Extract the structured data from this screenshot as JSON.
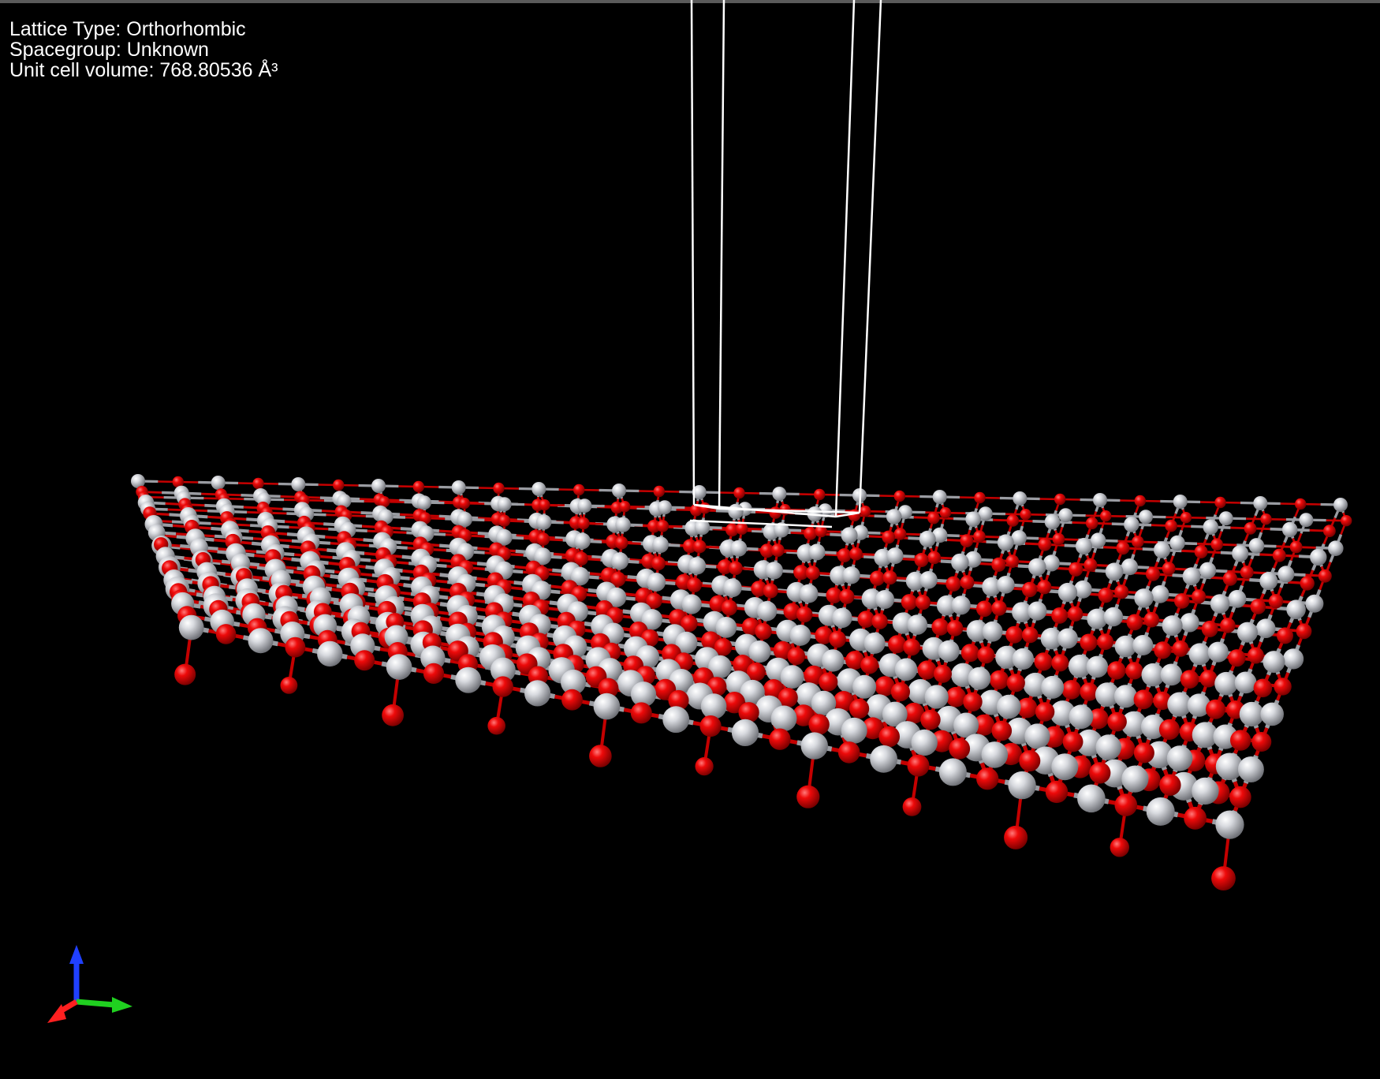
{
  "info": {
    "lattice_type": "Lattice Type: Orthorhombic",
    "spacegroup": "Spacegroup: Unknown",
    "unit_cell_volume": "Unit cell volume: 768.80536 Å³"
  },
  "colors": {
    "background": "#000000",
    "atom_light": "#c8cacf",
    "atom_red": "#e00000",
    "cell_edges": "#ffffff",
    "axis_x": "#ff2020",
    "axis_y": "#20d020",
    "axis_z": "#2040ff"
  },
  "icons": {
    "axes": "axes-triad-icon"
  }
}
